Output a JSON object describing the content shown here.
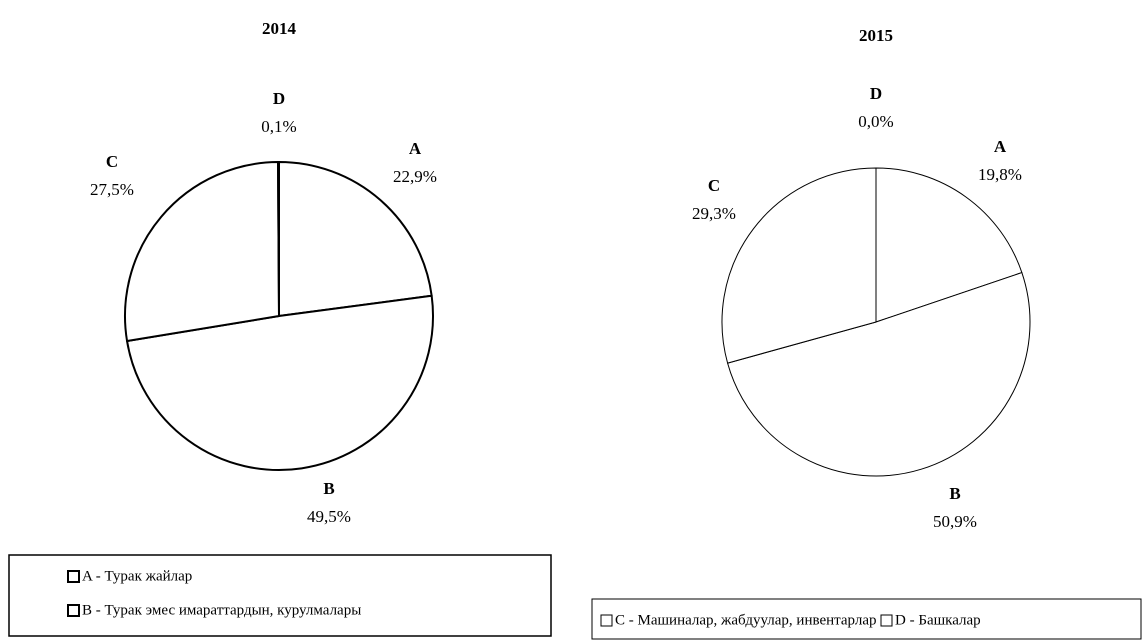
{
  "chart_data": [
    {
      "type": "pie",
      "title": "2014",
      "categories": [
        "A",
        "B",
        "C",
        "D"
      ],
      "values": [
        22.9,
        49.5,
        27.5,
        0.1
      ],
      "value_labels": [
        "22,9%",
        "49,5%",
        "27,5%",
        "0,1%"
      ],
      "color": "#ffffff",
      "legend": [
        "A - Турак жайлар",
        "B - Турак эмес имараттардын, курулмалары"
      ]
    },
    {
      "type": "pie",
      "title": "2015",
      "categories": [
        "A",
        "B",
        "C",
        "D"
      ],
      "values": [
        19.8,
        50.9,
        29.3,
        0.0
      ],
      "value_labels": [
        "19,8%",
        "50,9%",
        "29,3%",
        "0,0%"
      ],
      "color": "#ffffff",
      "legend": [
        "C - Машиналар, жабдуулар, инвентарлар",
        "D - Башкалар"
      ]
    }
  ]
}
